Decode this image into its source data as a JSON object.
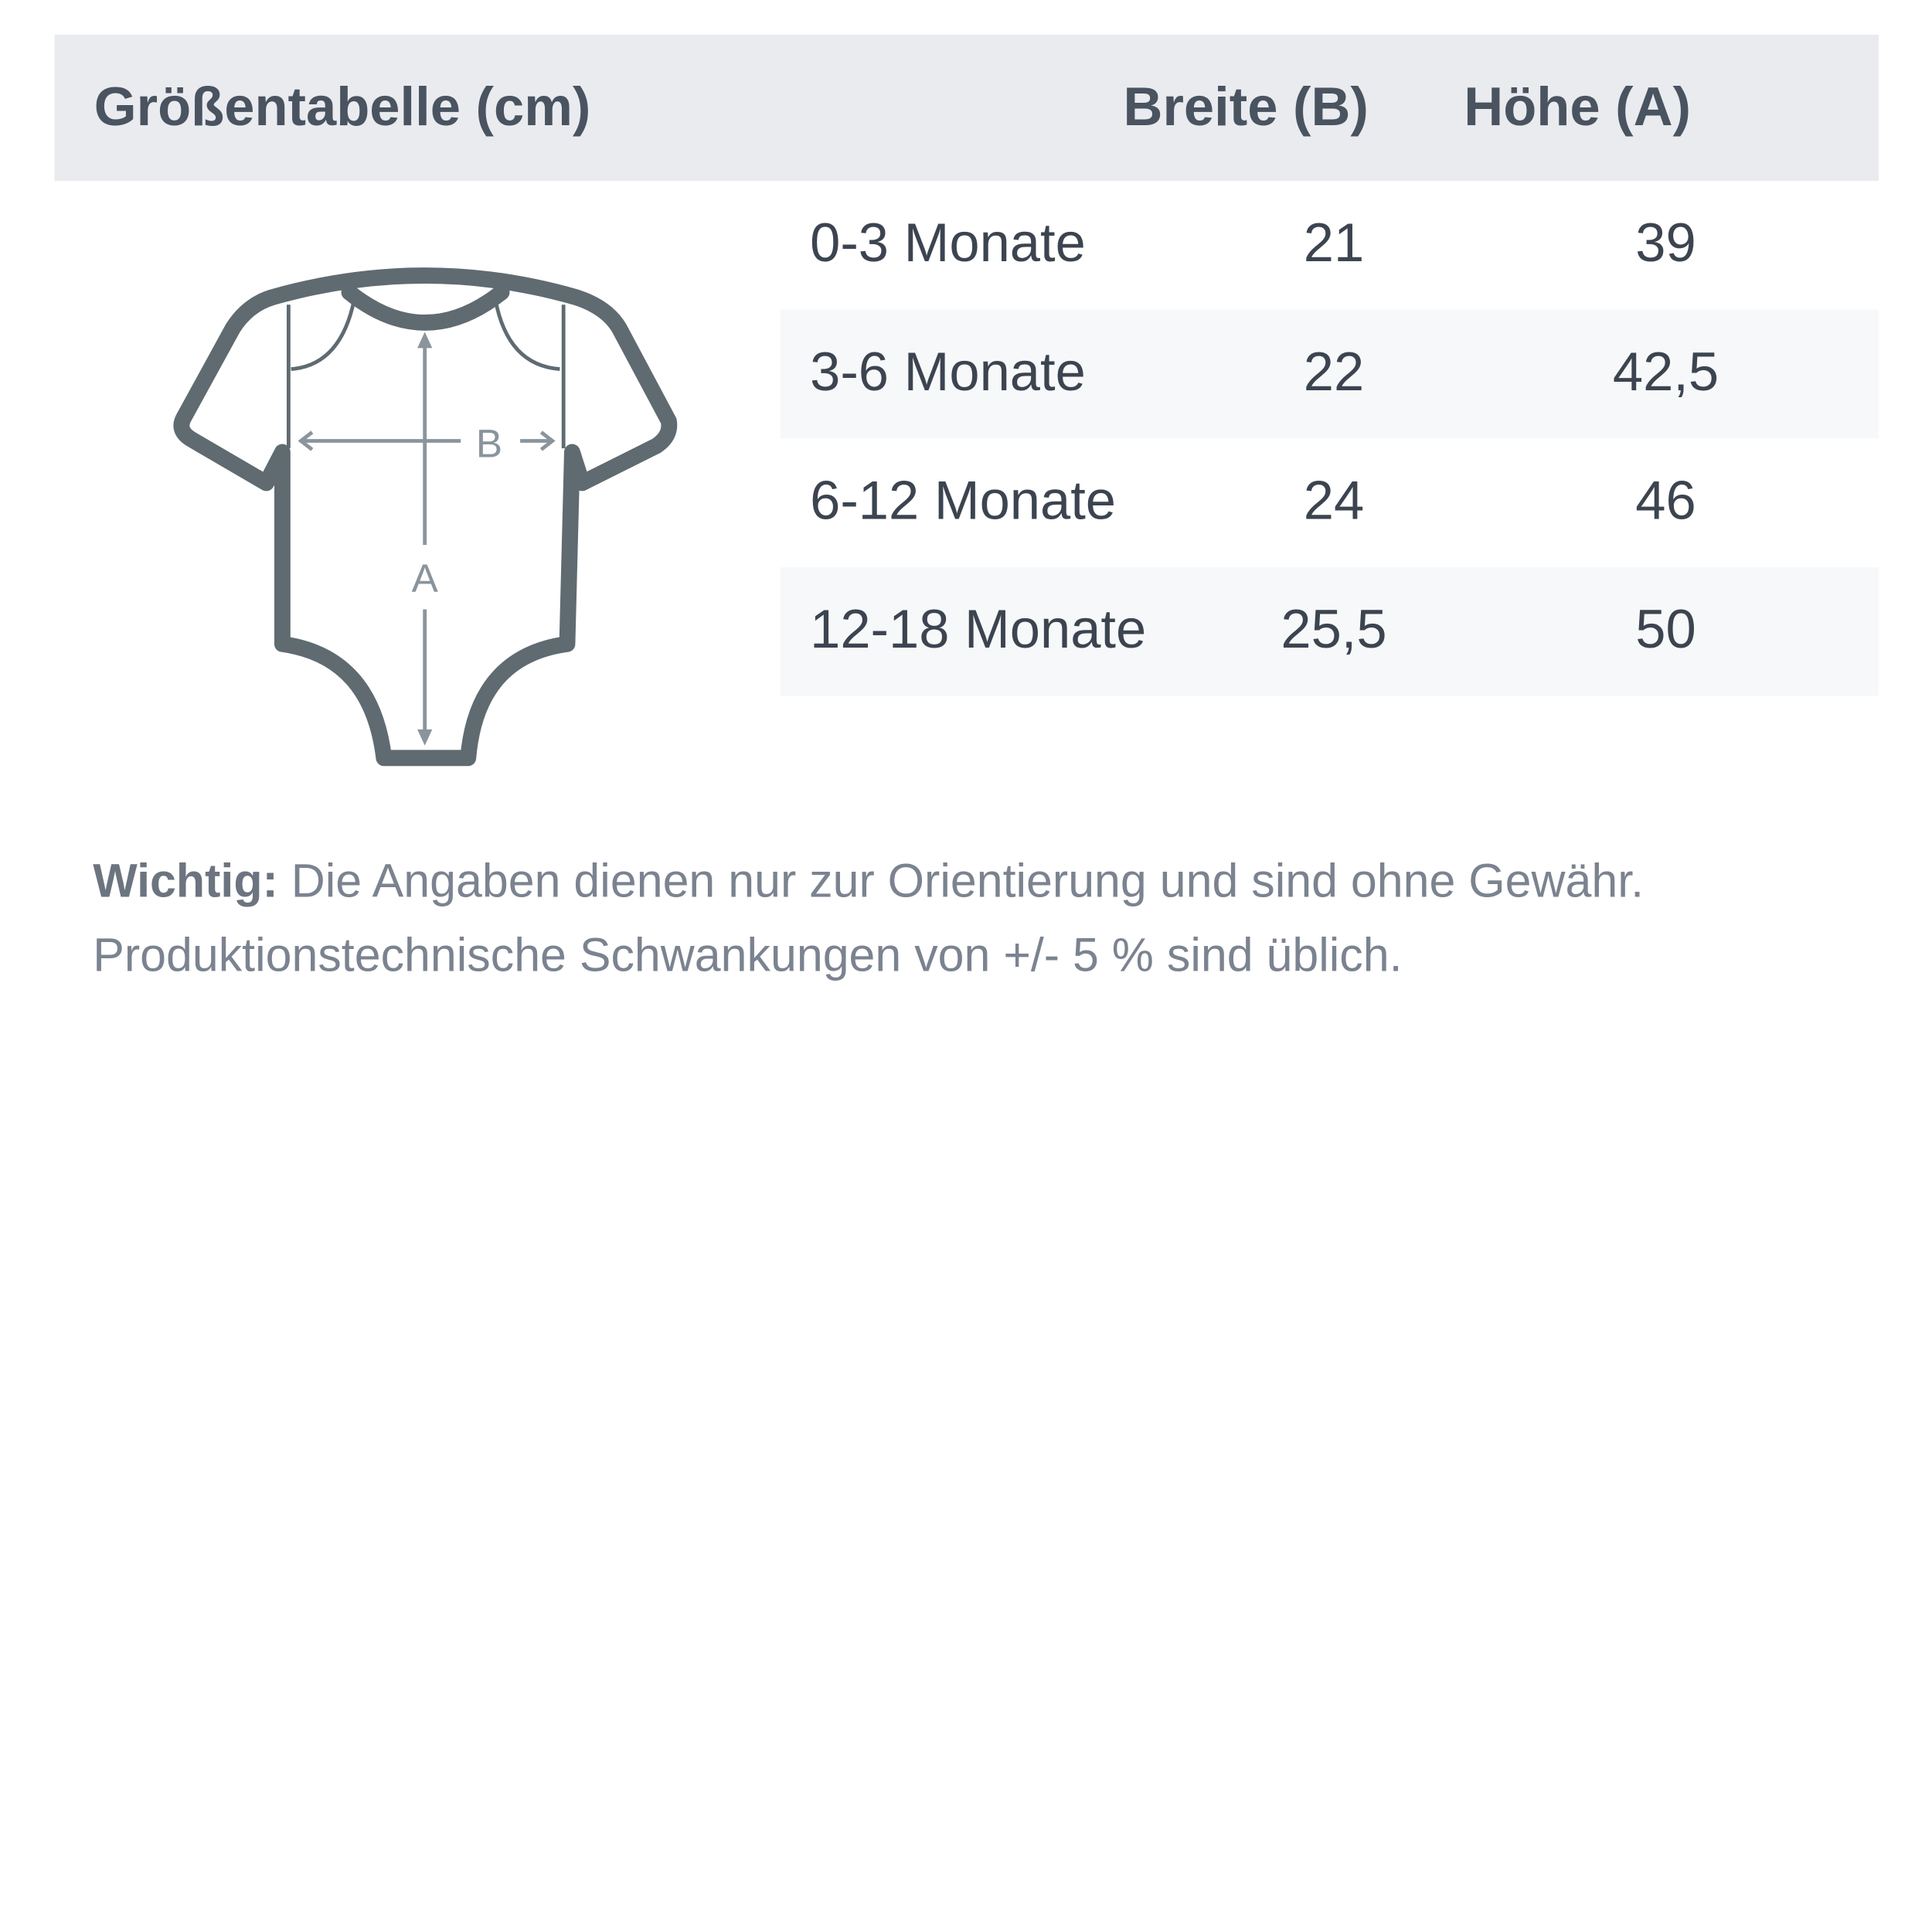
{
  "header": {
    "title": "Größentabelle (cm)",
    "col_width": "Breite (B)",
    "col_height": "Höhe (A)"
  },
  "rows": [
    {
      "size": "0-3 Monate",
      "width": "21",
      "height": "39"
    },
    {
      "size": "3-6 Monate",
      "width": "22",
      "height": "42,5"
    },
    {
      "size": "6-12 Monate",
      "width": "24",
      "height": "46"
    },
    {
      "size": "12-18 Monate",
      "width": "25,5",
      "height": "50"
    }
  ],
  "diagram": {
    "label_width": "B",
    "label_height": "A",
    "icon": "baby-bodysuit-icon",
    "outline_color": "#5f6b71",
    "arrow_color": "#8a949c"
  },
  "note": {
    "label": "Wichtig:",
    "line1": "Die Angaben dienen nur zur Orientierung und sind ohne Gewähr.",
    "line2": "Produktionstechnische Schwankungen von +/- 5 % sind üblich."
  },
  "colors": {
    "header_bg": "#e9ebef",
    "row_alt_bg": "#f7f8fa",
    "text": "#3c4450"
  }
}
